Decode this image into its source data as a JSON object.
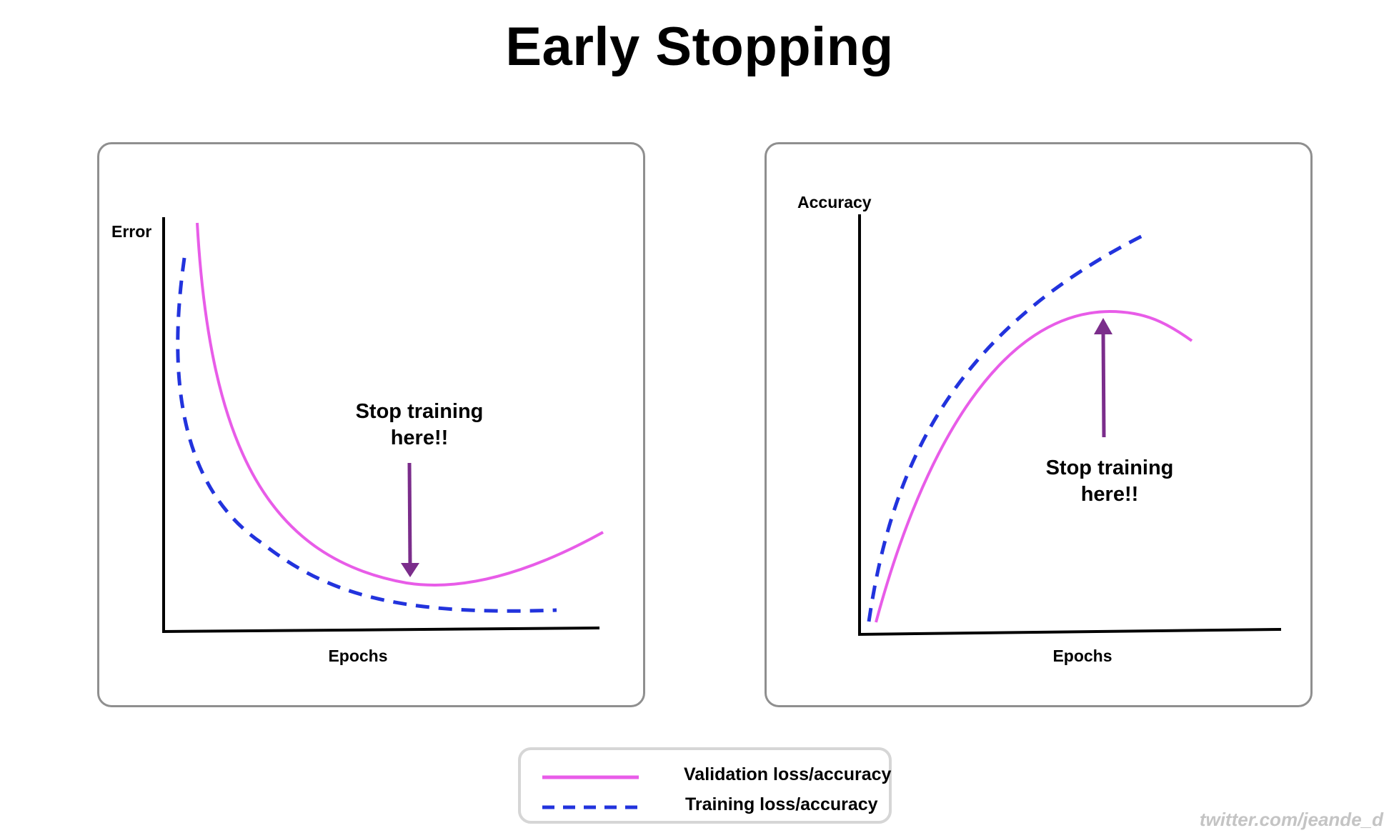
{
  "title": "Early Stopping",
  "panels": [
    {
      "ylabel": "Error",
      "xlabel": "Epochs",
      "annotation": [
        "Stop training",
        "here!!"
      ]
    },
    {
      "ylabel": "Accuracy",
      "xlabel": "Epochs",
      "annotation": [
        "Stop training",
        "here!!"
      ]
    }
  ],
  "legend": {
    "validation": "Validation loss/accuracy",
    "training": "Training loss/accuracy"
  },
  "watermark": "twitter.com/jeande_d",
  "colors": {
    "validation": "#e85ce8",
    "training": "#2233dd",
    "arrow": "#7b2d8b",
    "axis": "#000000",
    "panel_border": "#8f8f8f",
    "legend_border": "#d6d6d6",
    "watermark": "#c4c4c4"
  },
  "line_styles": {
    "validation": "solid",
    "training": "dashed"
  }
}
